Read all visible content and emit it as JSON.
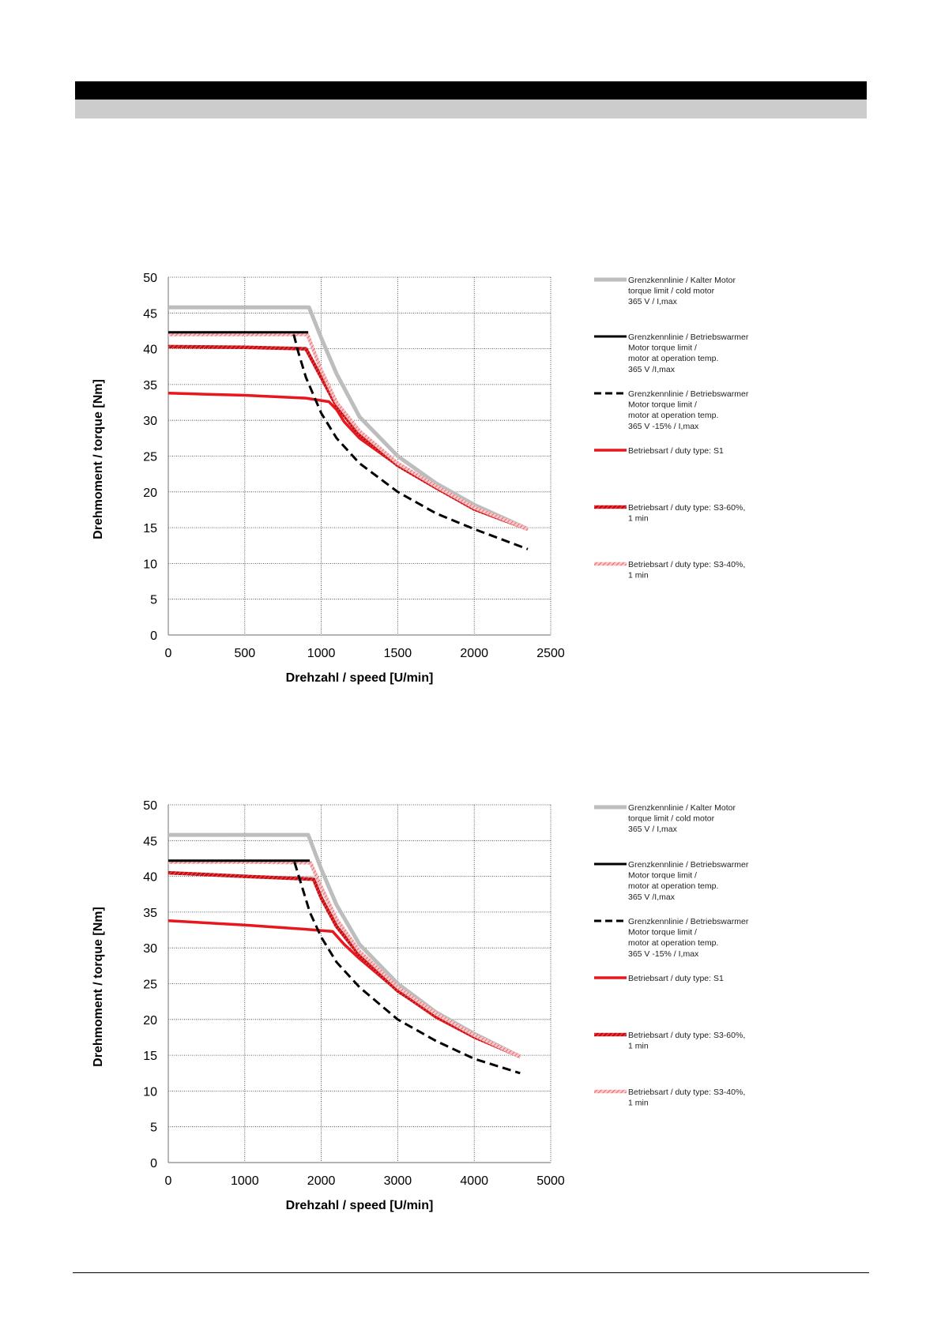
{
  "chart_data": [
    {
      "type": "line",
      "title": "",
      "xlabel": "Drehzahl / speed [U/min]",
      "ylabel": "Drehmoment / torque [Nm]",
      "xlim": [
        0,
        2500
      ],
      "ylim": [
        0,
        50
      ],
      "xticks": [
        0,
        500,
        1000,
        1500,
        2000,
        2500
      ],
      "yticks": [
        0,
        5,
        10,
        15,
        20,
        25,
        30,
        35,
        40,
        45,
        50
      ],
      "grid": true,
      "legend_position": "right",
      "series": [
        {
          "name": "Grenzkennlinie / Kalter Motor\ntorque limit / cold  motor\n365 V / I,max",
          "style": "solid",
          "color": "#bdbdbd",
          "x": [
            0,
            920,
            1000,
            1100,
            1250,
            1500,
            1750,
            2000,
            2350
          ],
          "y": [
            45.8,
            45.8,
            41.5,
            36.5,
            30.5,
            25.0,
            21.2,
            18.2,
            14.8
          ]
        },
        {
          "name": "Grenzkennlinie / Betriebswarmer\nMotor                torque limit /\nmotor at operation temp.\n365 V /I,max",
          "style": "solid",
          "color": "#000000",
          "x": [
            0,
            915
          ],
          "y": [
            42.3,
            42.3
          ]
        },
        {
          "name": "Grenzkennlinie / Betriebswarmer\nMotor                torque limit /\nmotor at operation temp.\n365 V  -15% / I,max",
          "style": "dashed",
          "color": "#000000",
          "x": [
            820,
            850,
            900,
            950,
            1000,
            1100,
            1250,
            1500,
            1750,
            2000,
            2350
          ],
          "y": [
            42.0,
            39.5,
            36.0,
            33.5,
            31.0,
            27.5,
            24.0,
            20.0,
            17.0,
            14.8,
            12.0
          ]
        },
        {
          "name": "Betriebsart / duty type: S1",
          "style": "solid",
          "color": "#e8171d",
          "x": [
            0,
            500,
            900,
            1050,
            1100,
            1150,
            1250,
            1500,
            1750,
            2000,
            2350
          ],
          "y": [
            33.8,
            33.5,
            33.1,
            32.6,
            31.5,
            29.8,
            27.5,
            23.7,
            20.6,
            17.6,
            14.8
          ]
        },
        {
          "name": "Betriebsart / duty type: S3-60%,\n1 min",
          "style": "hatched",
          "color": "#e8171d",
          "x": [
            0,
            500,
            900,
            1000,
            1100,
            1250,
            1500,
            1750,
            2000,
            2350
          ],
          "y": [
            40.3,
            40.2,
            40.0,
            36.0,
            32.0,
            28.0,
            23.7,
            20.6,
            17.6,
            14.8
          ]
        },
        {
          "name": "Betriebsart / duty type: S3-40%,\n1 min",
          "style": "hatched-light",
          "color": "#f1a0a2",
          "x": [
            0,
            500,
            910,
            1000,
            1100,
            1250,
            1500,
            1750,
            2000,
            2350
          ],
          "y": [
            42.0,
            42.0,
            42.0,
            37.0,
            32.5,
            28.5,
            24.0,
            20.8,
            17.8,
            14.8
          ]
        }
      ]
    },
    {
      "type": "line",
      "title": "",
      "xlabel": "Drehzahl / speed [U/min]",
      "ylabel": "Drehmoment / torque [Nm]",
      "xlim": [
        0,
        5000
      ],
      "ylim": [
        0,
        50
      ],
      "xticks": [
        0,
        1000,
        2000,
        3000,
        4000,
        5000
      ],
      "yticks": [
        0,
        5,
        10,
        15,
        20,
        25,
        30,
        35,
        40,
        45,
        50
      ],
      "grid": true,
      "legend_position": "right",
      "series": [
        {
          "name": "Grenzkennlinie / Kalter Motor\ntorque limit / cold  motor\n365 V / I,max",
          "style": "solid",
          "color": "#bdbdbd",
          "x": [
            0,
            1830,
            2000,
            2200,
            2500,
            3000,
            3500,
            4000,
            4600
          ],
          "y": [
            45.8,
            45.8,
            41.0,
            36.0,
            30.5,
            25.0,
            21.0,
            18.0,
            14.8
          ]
        },
        {
          "name": "Grenzkennlinie / Betriebswarmer\nMotor                torque limit /\nmotor at operation temp.\n365 V /I,max",
          "style": "solid",
          "color": "#000000",
          "x": [
            0,
            1850
          ],
          "y": [
            42.2,
            42.2
          ]
        },
        {
          "name": "Grenzkennlinie / Betriebswarmer\nMotor                torque limit /\nmotor at operation temp.\n365 V  -15% / I,max",
          "style": "dashed",
          "color": "#000000",
          "x": [
            1650,
            1750,
            1850,
            2000,
            2200,
            2500,
            3000,
            3500,
            4000,
            4600
          ],
          "y": [
            42.0,
            38.5,
            35.0,
            31.5,
            28.0,
            24.5,
            20.0,
            17.0,
            14.5,
            12.5
          ]
        },
        {
          "name": "Betriebsart / duty type: S1",
          "style": "solid",
          "color": "#e8171d",
          "x": [
            0,
            1000,
            1800,
            2150,
            2300,
            2500,
            3000,
            3500,
            4000,
            4600
          ],
          "y": [
            33.8,
            33.2,
            32.6,
            32.3,
            30.5,
            28.5,
            24.0,
            20.3,
            17.5,
            14.8
          ]
        },
        {
          "name": "Betriebsart / duty type: S3-60%,\n1 min",
          "style": "hatched",
          "color": "#e8171d",
          "x": [
            0,
            1000,
            1900,
            2000,
            2200,
            2500,
            3000,
            3500,
            4000,
            4600
          ],
          "y": [
            40.5,
            40.0,
            39.6,
            37.0,
            33.0,
            29.0,
            24.0,
            20.5,
            17.6,
            14.8
          ]
        },
        {
          "name": "Betriebsart / duty type: S3-40%,\n1 min",
          "style": "hatched-light",
          "color": "#f1a0a2",
          "x": [
            0,
            1000,
            1860,
            2000,
            2200,
            2500,
            3000,
            3500,
            4000,
            4600
          ],
          "y": [
            42.0,
            42.0,
            41.9,
            38.5,
            34.0,
            29.5,
            24.5,
            20.8,
            17.8,
            14.8
          ]
        }
      ]
    }
  ]
}
